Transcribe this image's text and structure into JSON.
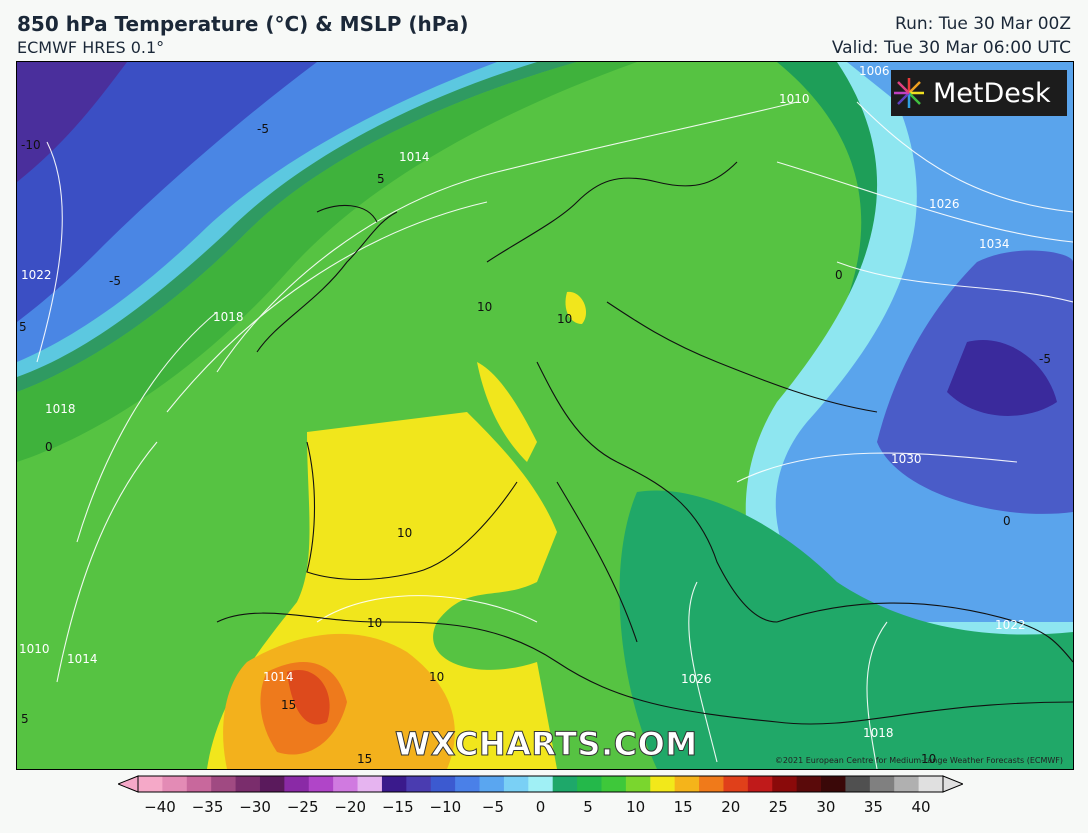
{
  "header": {
    "title": "850 hPa Temperature (°C) & MSLP (hPa)",
    "model": "ECMWF HRES 0.1°",
    "run": "Run: Tue 30 Mar 00Z",
    "valid": "Valid: Tue 30 Mar 06:00 UTC"
  },
  "map": {
    "logo_text": "MetDesk",
    "watermark": "WXCHARTS.COM",
    "copyright": "©2021 European Centre for Medium-range Weather Forecasts (ECMWF)",
    "isobar_labels": [
      "1006",
      "1010",
      "1014",
      "1018",
      "1018",
      "1022",
      "1026",
      "1034",
      "1030",
      "1022",
      "1026",
      "1018",
      "1014",
      "1010",
      "1014"
    ],
    "temperature_labels": [
      "-5",
      "-10",
      "5",
      "0",
      "-5",
      "5",
      "-5",
      "10",
      "10",
      "10",
      "10",
      "10",
      "15",
      "15",
      "0",
      "0",
      "10",
      "5"
    ]
  },
  "colorbar": {
    "ticks": [
      "−40",
      "−35",
      "−30",
      "−25",
      "−20",
      "−15",
      "−10",
      "−5",
      "0",
      "5",
      "10",
      "15",
      "20",
      "25",
      "30",
      "35",
      "40"
    ],
    "colors": [
      "#f5a9c8",
      "#e38bb5",
      "#c8689c",
      "#a04a82",
      "#7a2d6c",
      "#5a1a5c",
      "#8a2aa6",
      "#b045c8",
      "#d07ae0",
      "#e6b4f0",
      "#3a1a8c",
      "#4a3cb0",
      "#3c5ad0",
      "#4a80e8",
      "#5aa6f0",
      "#7ad0f5",
      "#a0f0f5",
      "#1ea86a",
      "#24b84a",
      "#3ec83a",
      "#7ad62e",
      "#f2e81a",
      "#f5b41a",
      "#f07a1a",
      "#e0401a",
      "#c01a1a",
      "#8a0a0a",
      "#5a0a0a",
      "#3a0808",
      "#505050",
      "#808080",
      "#b0b0b0",
      "#e0e0e0"
    ]
  }
}
